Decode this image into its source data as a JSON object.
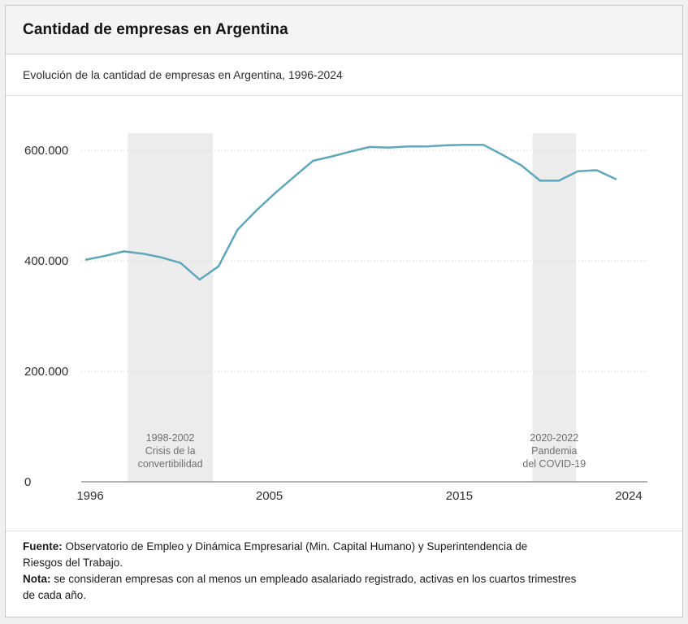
{
  "header": {
    "title": "Cantidad de empresas en Argentina"
  },
  "subtitle": {
    "text": "Evolución de la cantidad de empresas en Argentina, 1996-2024"
  },
  "chart_data": {
    "type": "line",
    "title": "Cantidad de empresas en Argentina",
    "subtitle": "Evolución de la cantidad de empresas en Argentina, 1996-2024",
    "xlabel": "",
    "ylabel": "",
    "xlim": [
      1996,
      2024
    ],
    "ylim": [
      0,
      630000
    ],
    "grid": true,
    "legend": "none",
    "x": [
      1996,
      1997,
      1998,
      1999,
      2000,
      2001,
      2002,
      2003,
      2004,
      2005,
      2006,
      2007,
      2008,
      2009,
      2010,
      2011,
      2012,
      2013,
      2014,
      2015,
      2016,
      2017,
      2018,
      2019,
      2020,
      2021,
      2022,
      2023,
      2024
    ],
    "series": [
      {
        "name": "Cantidad de empresas",
        "values": [
          402000,
          409000,
          417000,
          413000,
          406000,
          396000,
          366000,
          390000,
          456000,
          491000,
          523000,
          552000,
          581000,
          589000,
          598000,
          606000,
          605000,
          607000,
          607000,
          609000,
          610000,
          610000,
          592000,
          573000,
          545000,
          545000,
          562000,
          564000,
          548000
        ]
      }
    ],
    "yticks": [
      {
        "value": 0,
        "label": "0"
      },
      {
        "value": 200000,
        "label": "200.000"
      },
      {
        "value": 400000,
        "label": "400.000"
      },
      {
        "value": 600000,
        "label": "600.000"
      }
    ],
    "xticks": [
      {
        "value": 1996,
        "label": "1996"
      },
      {
        "value": 2005,
        "label": "2005"
      },
      {
        "value": 2015,
        "label": "2015"
      },
      {
        "value": 2024,
        "label": "2024"
      }
    ],
    "regions": [
      {
        "from": 1998.2,
        "to": 2002.7,
        "label_lines": [
          "1998-2002",
          "Crisis de la",
          "convertibilidad"
        ]
      },
      {
        "from": 2019.6,
        "to": 2021.9,
        "label_lines": [
          "2020-2022",
          "Pandemia",
          "del COVID-19"
        ]
      }
    ],
    "colors": {
      "line": "#5fa7ba",
      "region_fill": "#ececec",
      "grid": "#d8d8d8",
      "axis": "#9a9a9a",
      "tick_text": "#2e2e2e",
      "annotation_text": "#6f6f6f"
    }
  },
  "footer": {
    "source_label": "Fuente:",
    "source_line1": "Observatorio de Empleo y Dinámica Empresarial (Min. Capital Humano) y Superintendencia de",
    "source_line2": "Riesgos del Trabajo.",
    "note_label": "Nota:",
    "note_line1": "se consideran empresas con al menos un empleado asalariado registrado, activas en los cuartos trimestres",
    "note_line2": "de cada año."
  }
}
